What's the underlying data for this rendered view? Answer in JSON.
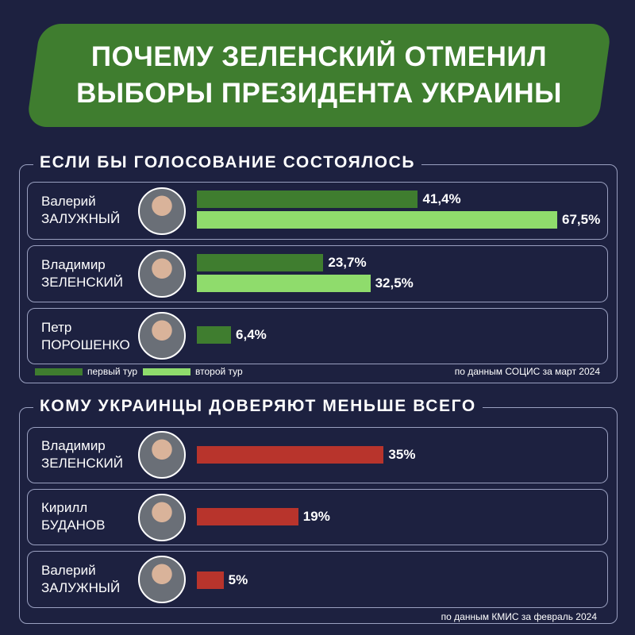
{
  "title": {
    "line1": "ПОЧЕМУ ЗЕЛЕНСКИЙ ОТМЕНИЛ",
    "line2": "ВЫБОРЫ ПРЕЗИДЕНТА УКРАИНЫ"
  },
  "colors": {
    "first_round": "#3f7d2f",
    "second_round": "#8fdc6c",
    "distrust": "#b8342c",
    "background": "#1d2140",
    "banner": "#3f7d2f"
  },
  "legend": {
    "first_round": "первый тур",
    "second_round": "второй тур"
  },
  "chart_data": [
    {
      "type": "bar",
      "title": "ЕСЛИ БЫ ГОЛОСОВАНИЕ СОСТОЯЛОСЬ",
      "source": "по данным СОЦИС за март 2024",
      "unit": "%",
      "xlim": [
        0,
        70
      ],
      "categories": [
        {
          "first": "Валерий",
          "last": "ЗАЛУЖНЫЙ"
        },
        {
          "first": "Владимир",
          "last": "ЗЕЛЕНСКИЙ"
        },
        {
          "first": "Петр",
          "last": "ПОРОШЕНКО"
        }
      ],
      "series": [
        {
          "name": "первый тур",
          "values": [
            41.4,
            23.7,
            6.4
          ],
          "labels": [
            "41,4%",
            "23,7%",
            "6,4%"
          ]
        },
        {
          "name": "второй тур",
          "values": [
            67.5,
            32.5,
            null
          ],
          "labels": [
            "67,5%",
            "32,5%",
            ""
          ]
        }
      ],
      "legend_position": "bottom-left"
    },
    {
      "type": "bar",
      "title": "КОМУ УКРАИНЦЫ ДОВЕРЯЮТ МЕНЬШЕ ВСЕГО",
      "source": "по данным КМИС за февраль 2024",
      "unit": "%",
      "xlim": [
        0,
        70
      ],
      "categories": [
        {
          "first": "Владимир",
          "last": "ЗЕЛЕНСКИЙ"
        },
        {
          "first": "Кирилл",
          "last": "БУДАНОВ"
        },
        {
          "first": "Валерий",
          "last": "ЗАЛУЖНЫЙ"
        }
      ],
      "series": [
        {
          "values": [
            35,
            19,
            5
          ],
          "labels": [
            "35%",
            "19%",
            "5%"
          ]
        }
      ]
    }
  ]
}
